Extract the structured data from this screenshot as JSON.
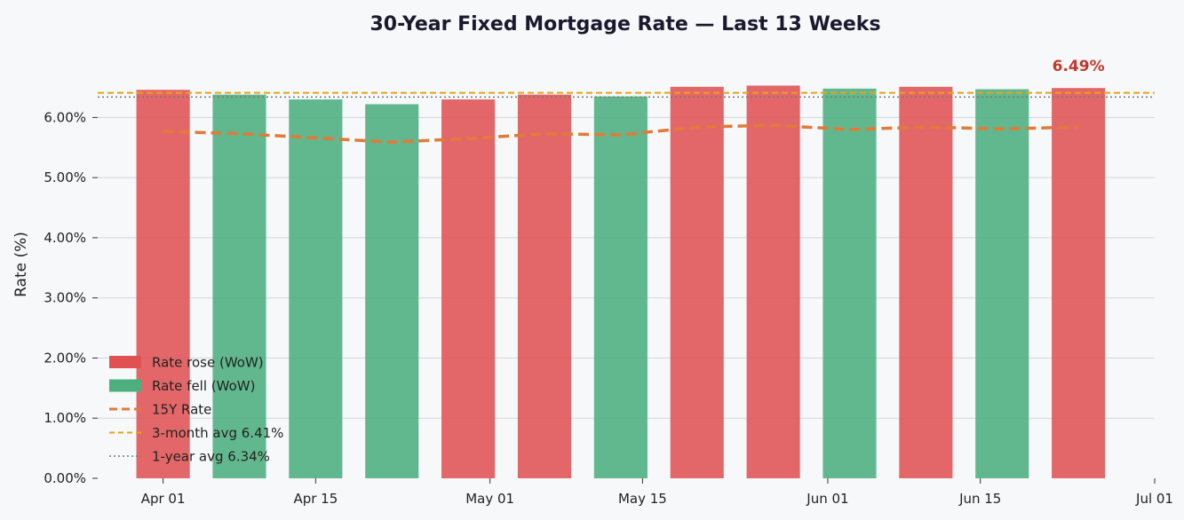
{
  "chart_data": {
    "type": "bar",
    "title": "30-Year Fixed Mortgage Rate — Last 13 Weeks",
    "ylabel": "Rate (%)",
    "xlabel": "",
    "ylim": [
      0,
      6.95
    ],
    "yticks": [
      "0.00%",
      "1.00%",
      "2.00%",
      "3.00%",
      "4.00%",
      "5.00%",
      "6.00%"
    ],
    "xlim": [
      "2024-03-26",
      "2024-07-01"
    ],
    "xticks": [
      {
        "date": "2024-04-01",
        "label": "Apr 01"
      },
      {
        "date": "2024-04-15",
        "label": "Apr 15"
      },
      {
        "date": "2024-05-01",
        "label": "May 01"
      },
      {
        "date": "2024-05-15",
        "label": "May 15"
      },
      {
        "date": "2024-06-01",
        "label": "Jun 01"
      },
      {
        "date": "2024-06-15",
        "label": "Jun 15"
      },
      {
        "date": "2024-07-01",
        "label": "Jul 01"
      }
    ],
    "weeks": [
      "2024-04-01",
      "2024-04-08",
      "2024-04-15",
      "2024-04-22",
      "2024-04-29",
      "2024-05-06",
      "2024-05-13",
      "2024-05-20",
      "2024-05-27",
      "2024-06-03",
      "2024-06-10",
      "2024-06-17",
      "2024-06-24"
    ],
    "series": [
      {
        "name": "30Y Rate",
        "style": "bar",
        "values": [
          6.46,
          6.38,
          6.3,
          6.22,
          6.3,
          6.38,
          6.35,
          6.51,
          6.53,
          6.48,
          6.51,
          6.47,
          6.49
        ],
        "direction": [
          "rose",
          "fell",
          "fell",
          "fell",
          "rose",
          "rose",
          "fell",
          "rose",
          "rose",
          "fell",
          "rose",
          "fell",
          "rose"
        ]
      },
      {
        "name": "15Y Rate",
        "style": "line-dashed",
        "values": [
          5.77,
          5.73,
          5.66,
          5.59,
          5.65,
          5.73,
          5.71,
          5.84,
          5.87,
          5.8,
          5.84,
          5.81,
          5.84
        ]
      }
    ],
    "reference_lines": [
      {
        "name": "3-month avg",
        "value": 6.41,
        "style": "dashed"
      },
      {
        "name": "1-year avg",
        "value": 6.34,
        "style": "dotted"
      }
    ],
    "annotation": {
      "text": "6.49%"
    },
    "colors": {
      "rose": "#e05252",
      "fell": "#4caf7d",
      "line15": "#e07b39",
      "avg3": "#e8a317",
      "avg1": "#777777",
      "annot": "#c0392b"
    },
    "legend": {
      "position": "bottom-left",
      "items": [
        "Rate rose (WoW)",
        "Rate fell (WoW)",
        "15Y Rate",
        "3-month avg  6.41%",
        "1-year avg  6.34%"
      ]
    },
    "grid": "horizontal"
  }
}
